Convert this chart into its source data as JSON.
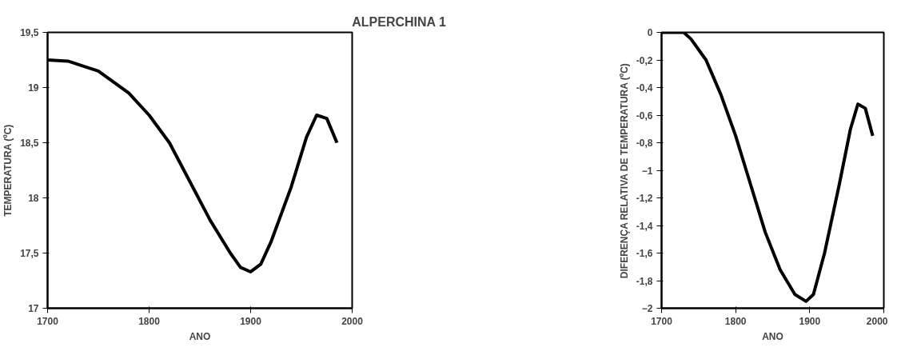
{
  "chart_data": [
    {
      "type": "line",
      "title": "ALPERCHINA 1",
      "xlabel": "ANO",
      "ylabel": "TEMPERATURA (ºC)",
      "x": [
        1700,
        1720,
        1750,
        1780,
        1800,
        1820,
        1840,
        1860,
        1880,
        1890,
        1900,
        1910,
        1920,
        1940,
        1955,
        1965,
        1975,
        1985
      ],
      "series": [
        {
          "color": "#000000",
          "values": [
            19.25,
            19.24,
            19.15,
            18.95,
            18.75,
            18.5,
            18.15,
            17.8,
            17.5,
            17.37,
            17.33,
            17.4,
            17.6,
            18.1,
            18.55,
            18.75,
            18.72,
            18.5
          ]
        }
      ],
      "xlim": [
        1700,
        2000
      ],
      "xticks": [
        1700,
        1800,
        1900,
        2000
      ],
      "ylim": [
        17,
        19.5
      ],
      "yticks": [
        17,
        {
          "value": 17.5,
          "label": "17,5"
        },
        18,
        {
          "value": 18.5,
          "label": "18,5"
        },
        19,
        {
          "value": 19.5,
          "label": "19,5"
        }
      ],
      "grid": false
    },
    {
      "type": "line",
      "xlabel": "ANO",
      "ylabel": "DIFERENÇA RELATIVA DE TEMPERATURA (ºC)",
      "x": [
        1700,
        1730,
        1740,
        1760,
        1780,
        1800,
        1820,
        1840,
        1860,
        1880,
        1895,
        1905,
        1920,
        1940,
        1955,
        1965,
        1975,
        1985
      ],
      "series": [
        {
          "color": "#000000",
          "values": [
            0,
            0,
            -0.05,
            -0.2,
            -0.45,
            -0.75,
            -1.1,
            -1.45,
            -1.72,
            -1.9,
            -1.95,
            -1.9,
            -1.6,
            -1.1,
            -0.7,
            -0.52,
            -0.55,
            -0.75
          ]
        }
      ],
      "xlim": [
        1700,
        2000
      ],
      "xticks": [
        1700,
        1800,
        1900,
        2000
      ],
      "ylim": [
        -2,
        0
      ],
      "yticks": [
        -2,
        {
          "value": -1.8,
          "label": "-1,8"
        },
        {
          "value": -1.6,
          "label": "-1,6"
        },
        {
          "value": -1.4,
          "label": "-1,4"
        },
        {
          "value": -1.2,
          "label": "-1,2"
        },
        -1,
        {
          "value": -0.8,
          "label": "-0,8"
        },
        {
          "value": -0.6,
          "label": "-0,6"
        },
        {
          "value": -0.4,
          "label": "-0,4"
        },
        {
          "value": -0.2,
          "label": "-0,2"
        },
        0
      ],
      "grid": false
    }
  ]
}
